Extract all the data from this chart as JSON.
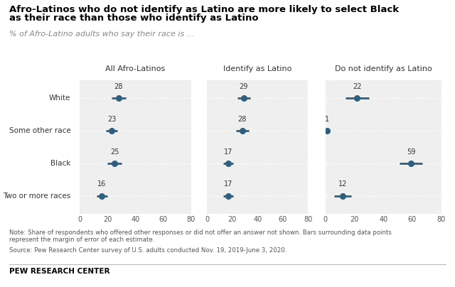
{
  "title_line1": "Afro-Latinos who do not identify as Latino are more likely to select Black",
  "title_line2": "as their race than those who identify as Latino",
  "subtitle": "% of Afro-Latino adults who say their race is …",
  "panels": [
    {
      "label": "All Afro-Latinos",
      "categories": [
        "White",
        "Some other race",
        "Black",
        "Two or more races"
      ],
      "values": [
        28,
        23,
        25,
        16
      ],
      "errors": [
        5,
        4,
        5,
        4
      ],
      "xlim": [
        0,
        80
      ],
      "xticks": [
        0,
        20,
        40,
        60,
        80
      ]
    },
    {
      "label": "Identify as Latino",
      "categories": [
        "White",
        "Some other race",
        "Black",
        "Two or more races"
      ],
      "values": [
        29,
        28,
        17,
        17
      ],
      "errors": [
        5,
        5,
        4,
        4
      ],
      "xlim": [
        0,
        80
      ],
      "xticks": [
        0,
        20,
        40,
        60,
        80
      ]
    },
    {
      "label": "Do not identify as Latino",
      "categories": [
        "White",
        "Some other race",
        "Black",
        "Two or more races"
      ],
      "values": [
        22,
        1,
        59,
        12
      ],
      "errors": [
        8,
        2,
        8,
        6
      ],
      "xlim": [
        0,
        80
      ],
      "xticks": [
        0,
        20,
        40,
        60,
        80
      ]
    }
  ],
  "dot_color": "#2E5F7E",
  "dot_size": 5.5,
  "error_linewidth": 2.0,
  "panel_bg": "#EFEFEF",
  "note_line1": "Note: Share of respondents who offered other responses or did not offer an answer not shown. Bars surrounding data points",
  "note_line2": "represent the margin of error of each estimate.",
  "source": "Source: Pew Research Center survey of U.S. adults conducted Nov. 19, 2019-June 3, 2020.",
  "branding": "PEW RESEARCH CENTER"
}
